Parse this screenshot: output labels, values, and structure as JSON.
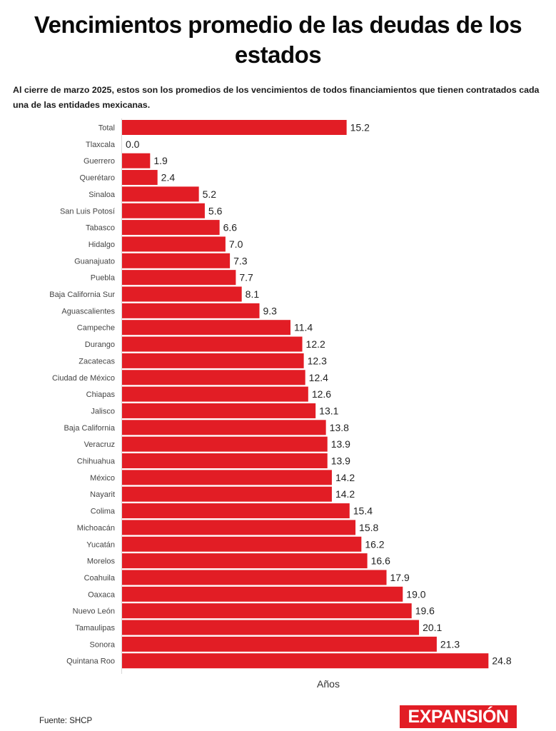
{
  "header": {
    "title_line1": "Vencimientos promedio de las deudas de los",
    "title_line2": "estados",
    "subtitle": "Al cierre de marzo 2025, estos son los promedios de los vencimientos de todos financiamientos que tienen contratados cada una de las entidades mexicanas."
  },
  "footer": {
    "source": "Fuente: SHCP",
    "logo": "EXPANSIÓN"
  },
  "colors": {
    "bar": "#e21d25",
    "logo_bg": "#e21d25"
  },
  "chart_data": {
    "type": "bar",
    "orientation": "horizontal",
    "title": "Vencimientos promedio de las deudas de los estados",
    "xlabel": "Años",
    "ylabel": "",
    "xlim": [
      0,
      25
    ],
    "grid": false,
    "legend": "none",
    "categories": [
      "Total",
      "Tlaxcala",
      "Guerrero",
      "Querétaro",
      "Sinaloa",
      "San Luis Potosí",
      "Tabasco",
      "Hidalgo",
      "Guanajuato",
      "Puebla",
      "Baja California Sur",
      "Aguascalientes",
      "Campeche",
      "Durango",
      "Zacatecas",
      "Ciudad de México",
      "Chiapas",
      "Jalisco",
      "Baja California",
      "Veracruz",
      "Chihuahua",
      "México",
      "Nayarit",
      "Colima",
      "Michoacán",
      "Yucatán",
      "Morelos",
      "Coahuila",
      "Oaxaca",
      "Nuevo León",
      "Tamaulipas",
      "Sonora",
      "Quintana Roo"
    ],
    "values": [
      15.2,
      0.0,
      1.9,
      2.4,
      5.2,
      5.6,
      6.6,
      7.0,
      7.3,
      7.7,
      8.1,
      9.3,
      11.4,
      12.2,
      12.3,
      12.4,
      12.6,
      13.1,
      13.8,
      13.9,
      13.9,
      14.2,
      14.2,
      15.4,
      15.8,
      16.2,
      16.6,
      17.9,
      19.0,
      19.6,
      20.1,
      21.3,
      24.8
    ],
    "value_labels": [
      "15.2",
      "0.0",
      "1.9",
      "2.4",
      "5.2",
      "5.6",
      "6.6",
      "7.0",
      "7.3",
      "7.7",
      "8.1",
      "9.3",
      "11.4",
      "12.2",
      "12.3",
      "12.4",
      "12.6",
      "13.1",
      "13.8",
      "13.9",
      "13.9",
      "14.2",
      "14.2",
      "15.4",
      "15.8",
      "16.2",
      "16.6",
      "17.9",
      "19.0",
      "19.6",
      "20.1",
      "21.3",
      "24.8"
    ]
  }
}
